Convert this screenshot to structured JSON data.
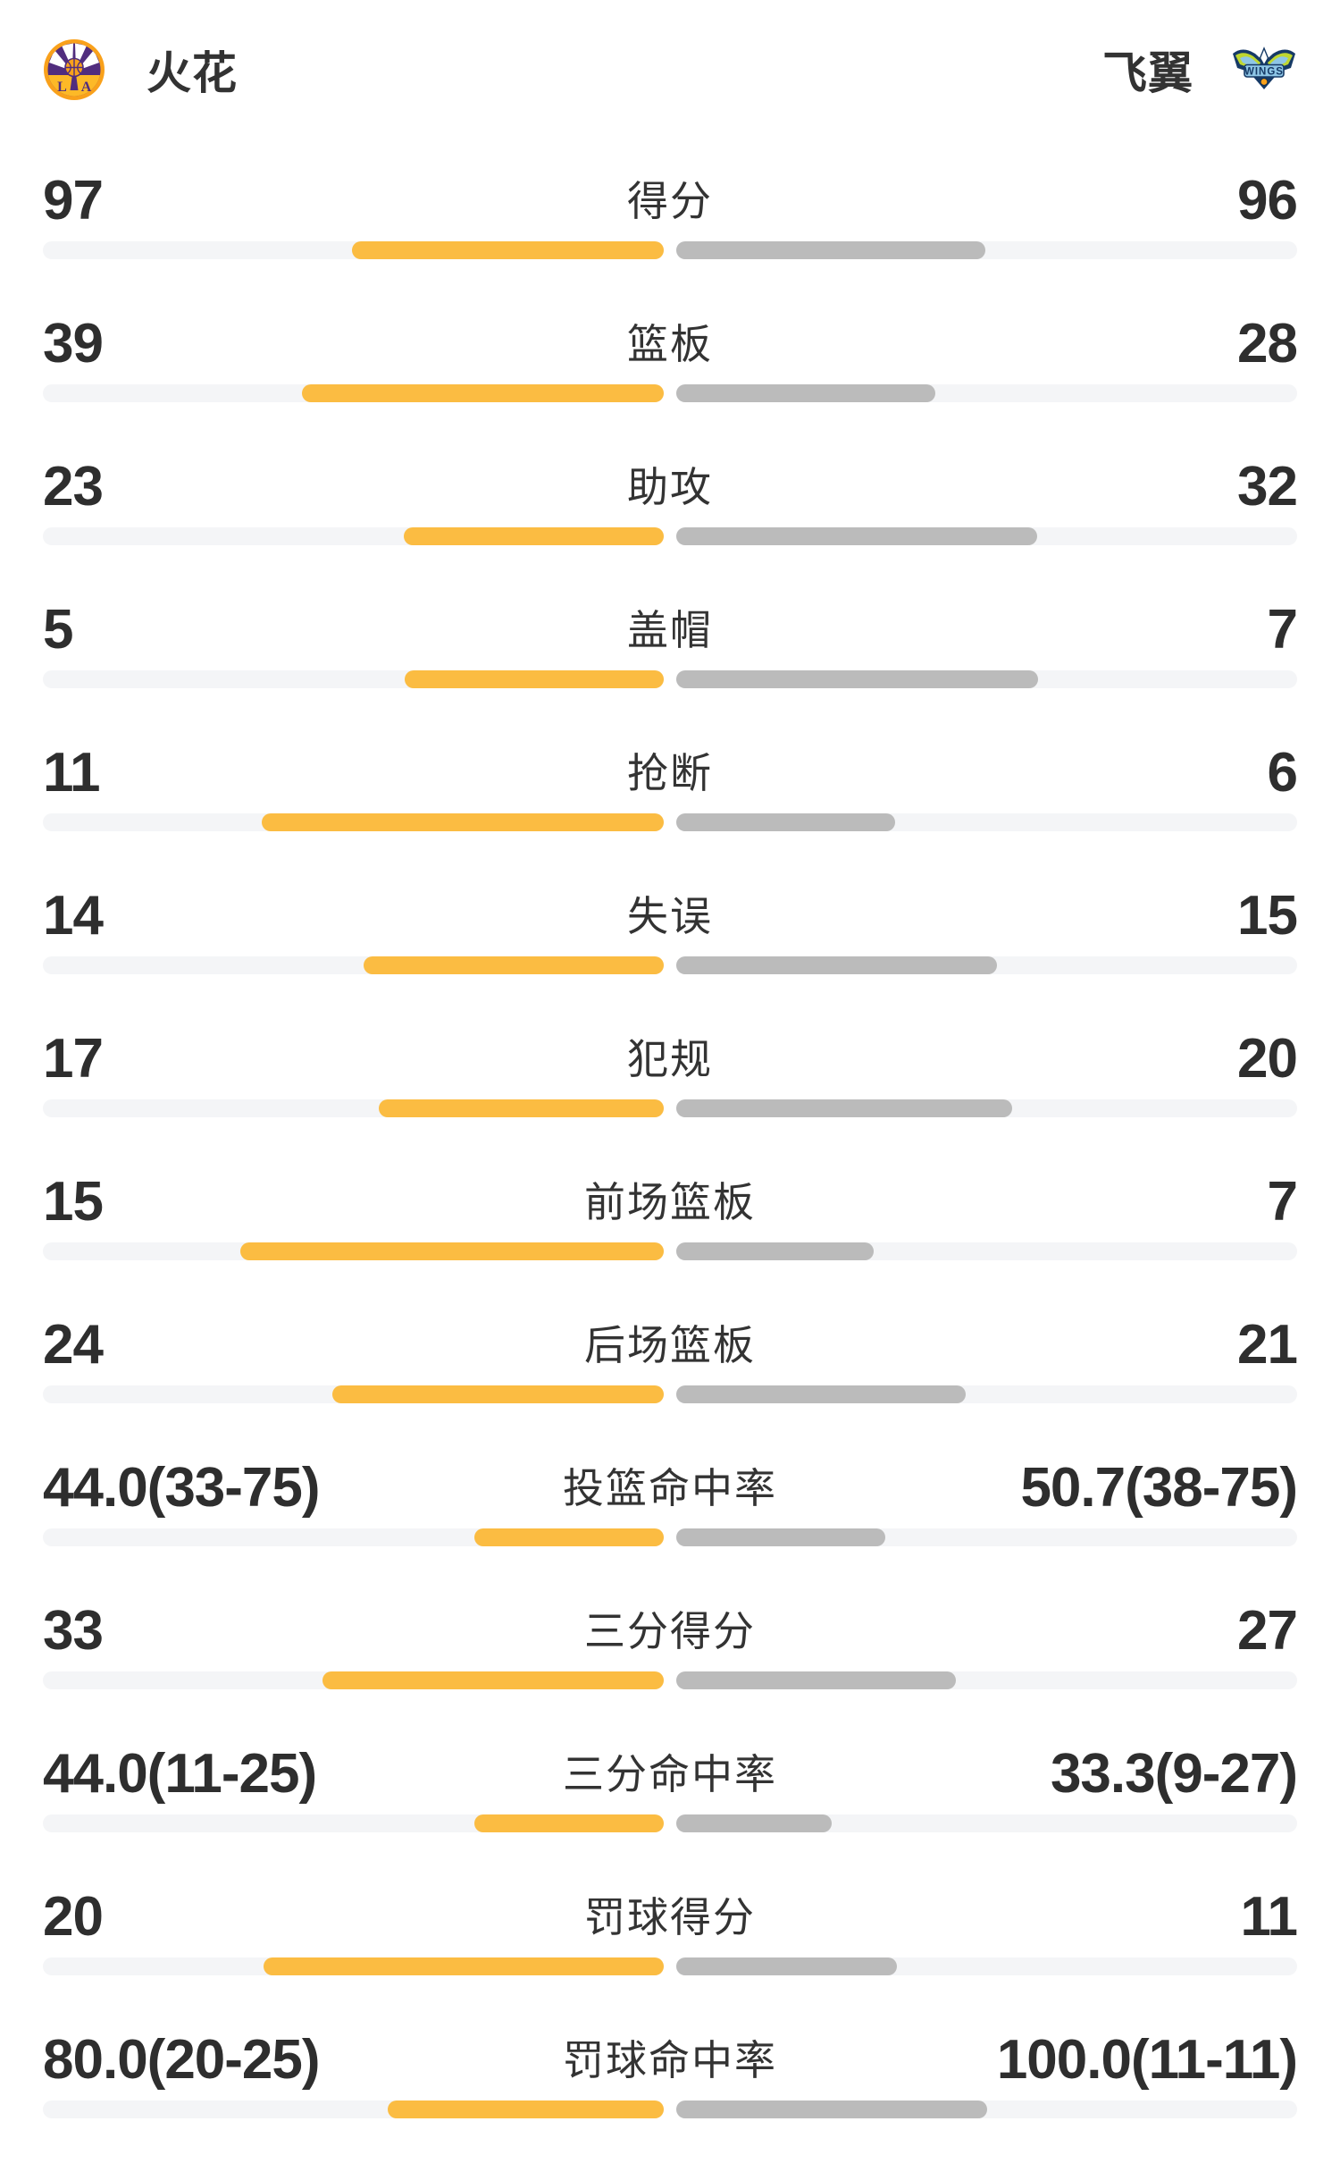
{
  "header": {
    "left_team": {
      "name": "火花",
      "logo": "la-sparks-circle-logo"
    },
    "right_team": {
      "name": "飞翼",
      "logo": "dallas-wings-logo"
    }
  },
  "colors": {
    "left_bar": "#FBBC42",
    "right_bar": "#BBBBBB",
    "track": "#F4F5F7",
    "value_text": "#2E2E2E",
    "label_text": "#333333",
    "sparks_orange": "#F9A11B",
    "sparks_purple": "#512D7E",
    "wings_navy": "#163A66",
    "wings_green": "#BFD730",
    "wings_blue": "#8EC6E6"
  },
  "chart_data": {
    "type": "bar",
    "layout": "paired-horizontal-center-out",
    "legend_position": "top",
    "series": [
      {
        "name": "火花"
      },
      {
        "name": "飞翼"
      }
    ],
    "rows": [
      {
        "label": "得分",
        "left": "97",
        "right": "96"
      },
      {
        "label": "篮板",
        "left": "39",
        "right": "28"
      },
      {
        "label": "助攻",
        "left": "23",
        "right": "32"
      },
      {
        "label": "盖帽",
        "left": "5",
        "right": "7"
      },
      {
        "label": "抢断",
        "left": "11",
        "right": "6"
      },
      {
        "label": "失误",
        "left": "14",
        "right": "15"
      },
      {
        "label": "犯规",
        "left": "17",
        "right": "20"
      },
      {
        "label": "前场篮板",
        "left": "15",
        "right": "7"
      },
      {
        "label": "后场篮板",
        "left": "24",
        "right": "21"
      },
      {
        "label": "投篮命中率",
        "left": "44.0(33-75)",
        "right": "50.7(38-75)"
      },
      {
        "label": "三分得分",
        "left": "33",
        "right": "27"
      },
      {
        "label": "三分命中率",
        "left": "44.0(11-25)",
        "right": "33.3(9-27)"
      },
      {
        "label": "罚球得分",
        "left": "20",
        "right": "11"
      },
      {
        "label": "罚球命中率",
        "left": "80.0(20-25)",
        "right": "100.0(11-11)"
      }
    ]
  }
}
